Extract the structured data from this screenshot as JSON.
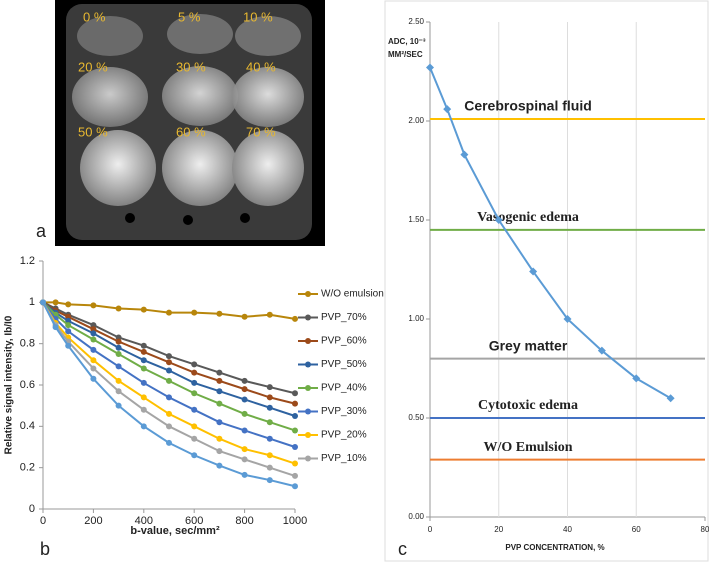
{
  "figure_image": {
    "panel_label": "a",
    "phantom_labels": [
      "0 %",
      "5 %",
      "10 %",
      "20 %",
      "30 %",
      "40 %",
      "50 %",
      "60 %",
      "70 %"
    ]
  },
  "chart_data": [
    {
      "type": "line",
      "panel_label": "b",
      "xlabel": "b-value, sec/mm²",
      "ylabel": "Relative signal intensity, Ib/I0",
      "x": [
        0,
        50,
        100,
        200,
        300,
        400,
        500,
        600,
        700,
        800,
        900,
        1000
      ],
      "xlim": [
        0,
        1000
      ],
      "xticks": [
        0,
        200,
        400,
        600,
        800,
        1000
      ],
      "ylim": [
        0,
        1.2
      ],
      "yticks": [
        0,
        0.2,
        0.4,
        0.6,
        0.8,
        1,
        1.2
      ],
      "grid": false,
      "legend": "right",
      "series": [
        {
          "name": "W/O emulsion",
          "color": "#b8860b",
          "values": [
            1,
            1.0,
            0.99,
            0.985,
            0.97,
            0.965,
            0.95,
            0.95,
            0.945,
            0.93,
            0.94,
            0.92
          ]
        },
        {
          "name": "PVP_70%",
          "color": "#595959",
          "values": [
            1,
            0.97,
            0.94,
            0.89,
            0.83,
            0.79,
            0.74,
            0.7,
            0.66,
            0.62,
            0.59,
            0.56
          ]
        },
        {
          "name": "PVP_60%",
          "color": "#9c4a1a",
          "values": [
            1,
            0.96,
            0.93,
            0.87,
            0.81,
            0.76,
            0.71,
            0.66,
            0.62,
            0.58,
            0.54,
            0.51
          ]
        },
        {
          "name": "PVP_50%",
          "color": "#2e62a0",
          "values": [
            1,
            0.95,
            0.91,
            0.85,
            0.78,
            0.72,
            0.67,
            0.61,
            0.57,
            0.53,
            0.49,
            0.45
          ]
        },
        {
          "name": "PVP_40%",
          "color": "#70ad47",
          "values": [
            1,
            0.94,
            0.89,
            0.82,
            0.75,
            0.68,
            0.62,
            0.56,
            0.51,
            0.46,
            0.42,
            0.38
          ]
        },
        {
          "name": "PVP_30%",
          "color": "#4472c4",
          "values": [
            1,
            0.92,
            0.86,
            0.77,
            0.69,
            0.61,
            0.54,
            0.48,
            0.42,
            0.38,
            0.34,
            0.3
          ]
        },
        {
          "name": "PVP_20%",
          "color": "#ffc000",
          "values": [
            1,
            0.9,
            0.83,
            0.72,
            0.62,
            0.54,
            0.46,
            0.4,
            0.34,
            0.29,
            0.26,
            0.22
          ]
        },
        {
          "name": "PVP_10%",
          "color": "#a5a5a5",
          "values": [
            1,
            0.89,
            0.81,
            0.68,
            0.57,
            0.48,
            0.4,
            0.34,
            0.28,
            0.24,
            0.2,
            0.16
          ]
        },
        {
          "color": "#5b9bd5",
          "values": [
            1,
            0.88,
            0.79,
            0.63,
            0.5,
            0.4,
            0.32,
            0.26,
            0.21,
            0.165,
            0.14,
            0.11
          ]
        }
      ]
    },
    {
      "type": "line",
      "panel_label": "c",
      "xlabel": "PVP CONCENTRATION, %",
      "ylabel_lines": [
        "ADC, 10⁻³",
        "MM²/SEC"
      ],
      "x": [
        0,
        5,
        10,
        20,
        30,
        40,
        50,
        60,
        70
      ],
      "xlim": [
        0,
        80
      ],
      "xticks": [
        0,
        20,
        40,
        60,
        80
      ],
      "ylim": [
        0,
        2.5
      ],
      "yticks": [
        {
          "value": 0,
          "label": "0.00"
        },
        {
          "value": 0.5,
          "label": "0.50"
        },
        {
          "value": 1,
          "label": "1.00"
        },
        {
          "value": 1.5,
          "label": "1.50"
        },
        {
          "value": 2,
          "label": "2.00"
        },
        {
          "value": 2.5,
          "label": "2.50"
        }
      ],
      "grid": true,
      "series": [
        {
          "color": "#5b9bd5",
          "values": [
            2.27,
            2.06,
            1.83,
            1.5,
            1.24,
            1.0,
            0.84,
            0.7,
            0.6
          ]
        }
      ],
      "reference_lines": [
        {
          "label": "Cerebrospinal fluid",
          "value": 2.01,
          "color": "#ffc000"
        },
        {
          "label": "Vasogenic edema",
          "value": 1.45,
          "color": "#70ad47"
        },
        {
          "label": "Grey matter",
          "value": 0.8,
          "color": "#a5a5a5"
        },
        {
          "label": "Cytotoxic edema",
          "value": 0.5,
          "color": "#4472c4"
        },
        {
          "label": "W/O Emulsion",
          "value": 0.29,
          "color": "#ed7d31"
        }
      ]
    }
  ]
}
